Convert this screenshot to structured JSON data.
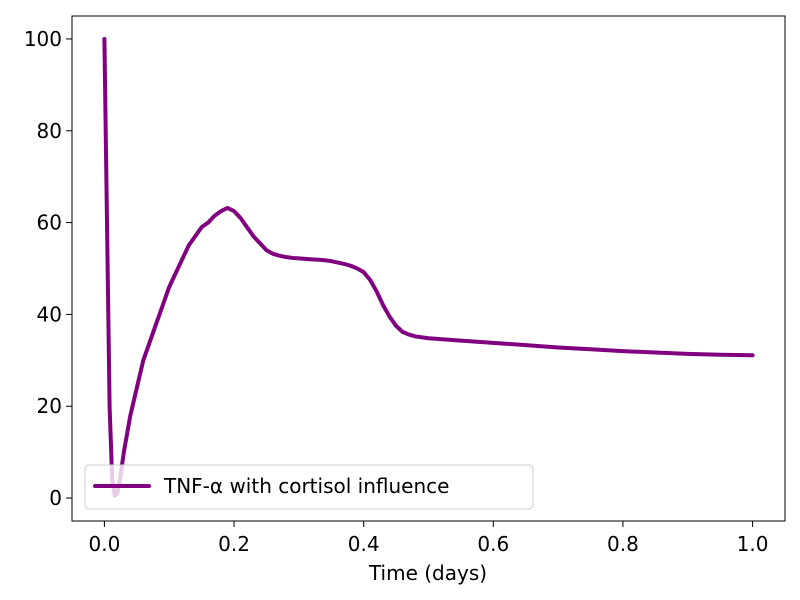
{
  "chart_data": {
    "type": "line",
    "title": "",
    "xlabel": "Time (days)",
    "ylabel": "",
    "xlim": [
      -0.05,
      1.05
    ],
    "ylim": [
      -5,
      105
    ],
    "xticks": [
      0.0,
      0.2,
      0.4,
      0.6,
      0.8,
      1.0
    ],
    "xtick_labels": [
      "0.0",
      "0.2",
      "0.4",
      "0.6",
      "0.8",
      "1.0"
    ],
    "yticks": [
      0,
      20,
      40,
      60,
      80,
      100
    ],
    "ytick_labels": [
      "0",
      "20",
      "40",
      "60",
      "80",
      "100"
    ],
    "grid": false,
    "legend_position": "lower-left",
    "series": [
      {
        "name": "TNF-α with cortisol influence",
        "color": "#800080",
        "points": [
          [
            0.0,
            100
          ],
          [
            0.004,
            60
          ],
          [
            0.008,
            20
          ],
          [
            0.012,
            4
          ],
          [
            0.016,
            0.5
          ],
          [
            0.02,
            1
          ],
          [
            0.025,
            5
          ],
          [
            0.03,
            10
          ],
          [
            0.04,
            18
          ],
          [
            0.05,
            24
          ],
          [
            0.06,
            30
          ],
          [
            0.07,
            34
          ],
          [
            0.08,
            38
          ],
          [
            0.09,
            42
          ],
          [
            0.1,
            46
          ],
          [
            0.11,
            49
          ],
          [
            0.12,
            52
          ],
          [
            0.13,
            55
          ],
          [
            0.14,
            57
          ],
          [
            0.15,
            59
          ],
          [
            0.16,
            60
          ],
          [
            0.17,
            61.5
          ],
          [
            0.18,
            62.5
          ],
          [
            0.19,
            63.2
          ],
          [
            0.2,
            62.5
          ],
          [
            0.21,
            61
          ],
          [
            0.22,
            59
          ],
          [
            0.23,
            57
          ],
          [
            0.24,
            55.5
          ],
          [
            0.25,
            54
          ],
          [
            0.26,
            53.2
          ],
          [
            0.27,
            52.8
          ],
          [
            0.28,
            52.5
          ],
          [
            0.29,
            52.3
          ],
          [
            0.3,
            52.2
          ],
          [
            0.31,
            52.1
          ],
          [
            0.32,
            52.0
          ],
          [
            0.33,
            51.9
          ],
          [
            0.34,
            51.8
          ],
          [
            0.35,
            51.6
          ],
          [
            0.36,
            51.3
          ],
          [
            0.37,
            51.0
          ],
          [
            0.38,
            50.6
          ],
          [
            0.39,
            50.0
          ],
          [
            0.4,
            49.2
          ],
          [
            0.41,
            47.5
          ],
          [
            0.42,
            45
          ],
          [
            0.43,
            42
          ],
          [
            0.44,
            39.5
          ],
          [
            0.45,
            37.5
          ],
          [
            0.46,
            36.2
          ],
          [
            0.47,
            35.6
          ],
          [
            0.48,
            35.2
          ],
          [
            0.5,
            34.8
          ],
          [
            0.55,
            34.3
          ],
          [
            0.6,
            33.8
          ],
          [
            0.65,
            33.3
          ],
          [
            0.7,
            32.8
          ],
          [
            0.75,
            32.4
          ],
          [
            0.8,
            32.0
          ],
          [
            0.85,
            31.7
          ],
          [
            0.9,
            31.4
          ],
          [
            0.95,
            31.2
          ],
          [
            1.0,
            31.1
          ]
        ]
      }
    ]
  }
}
